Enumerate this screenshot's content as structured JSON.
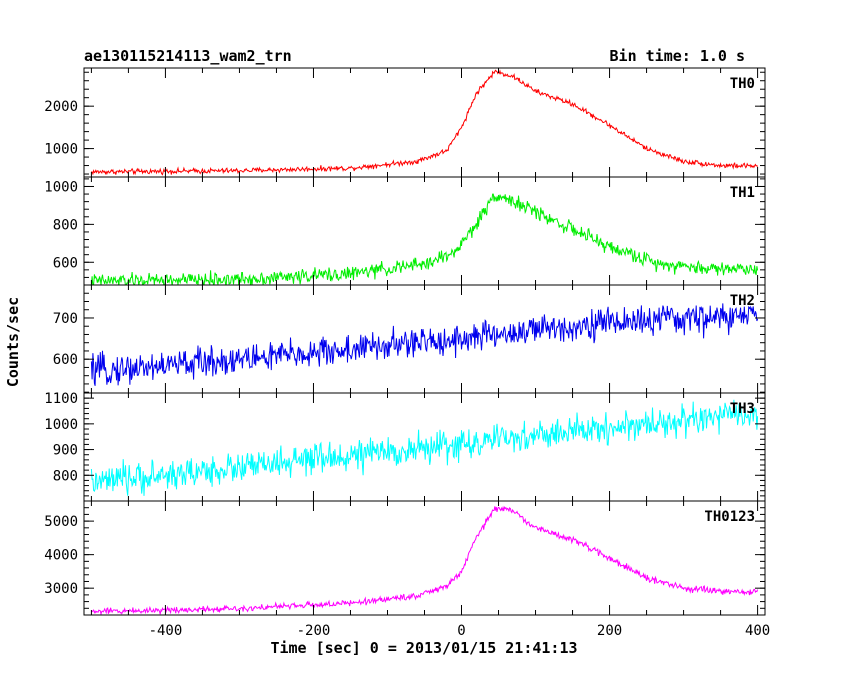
{
  "header": {
    "title": "ae130115214113_wam2_trn",
    "bin_time": "Bin time: 1.0 s"
  },
  "chart_data": {
    "type": "line",
    "xlabel": "Time [sec] 0 = 2013/01/15 21:41:13",
    "ylabel": "Counts/sec",
    "xlim": [
      -510,
      410
    ],
    "x_ticks": [
      -400,
      -200,
      0,
      200,
      400
    ],
    "panels": [
      {
        "name": "TH0",
        "color": "#ff0000",
        "ylim": [
          330,
          2900
        ],
        "y_ticks": [
          1000,
          2000
        ],
        "noise": 45,
        "profile": [
          [
            -500,
            450
          ],
          [
            -300,
            480
          ],
          [
            -150,
            540
          ],
          [
            -60,
            700
          ],
          [
            -20,
            950
          ],
          [
            0,
            1500
          ],
          [
            20,
            2300
          ],
          [
            45,
            2820
          ],
          [
            70,
            2700
          ],
          [
            100,
            2350
          ],
          [
            150,
            2050
          ],
          [
            200,
            1550
          ],
          [
            250,
            1000
          ],
          [
            300,
            700
          ],
          [
            350,
            600
          ],
          [
            400,
            590
          ]
        ]
      },
      {
        "name": "TH1",
        "color": "#00ee00",
        "ylim": [
          480,
          1050
        ],
        "y_ticks": [
          600,
          800,
          1000
        ],
        "noise": 28,
        "profile": [
          [
            -500,
            500
          ],
          [
            -300,
            510
          ],
          [
            -150,
            540
          ],
          [
            -50,
            590
          ],
          [
            -10,
            650
          ],
          [
            20,
            800
          ],
          [
            45,
            960
          ],
          [
            70,
            920
          ],
          [
            120,
            830
          ],
          [
            200,
            680
          ],
          [
            260,
            600
          ],
          [
            320,
            570
          ],
          [
            400,
            565
          ]
        ]
      },
      {
        "name": "TH2",
        "color": "#0000ee",
        "ylim": [
          518,
          780
        ],
        "y_ticks": [
          600,
          700
        ],
        "noise": 28,
        "profile": [
          [
            -500,
            570
          ],
          [
            -200,
            615
          ],
          [
            0,
            650
          ],
          [
            200,
            690
          ],
          [
            400,
            705
          ]
        ]
      },
      {
        "name": "TH3",
        "color": "#00ffff",
        "ylim": [
          700,
          1120
        ],
        "y_ticks": [
          800,
          900,
          1000,
          1100
        ],
        "noise": 45,
        "profile": [
          [
            -500,
            770
          ],
          [
            -250,
            845
          ],
          [
            0,
            920
          ],
          [
            200,
            985
          ],
          [
            400,
            1040
          ]
        ]
      },
      {
        "name": "TH0123",
        "color": "#ff00ff",
        "ylim": [
          2200,
          5600
        ],
        "y_ticks": [
          3000,
          4000,
          5000
        ],
        "noise": 70,
        "profile": [
          [
            -500,
            2300
          ],
          [
            -300,
            2400
          ],
          [
            -150,
            2550
          ],
          [
            -60,
            2780
          ],
          [
            -20,
            3050
          ],
          [
            0,
            3500
          ],
          [
            20,
            4500
          ],
          [
            45,
            5400
          ],
          [
            70,
            5300
          ],
          [
            100,
            4800
          ],
          [
            150,
            4450
          ],
          [
            200,
            3900
          ],
          [
            250,
            3300
          ],
          [
            300,
            3000
          ],
          [
            350,
            2900
          ],
          [
            400,
            2880
          ]
        ]
      }
    ]
  }
}
